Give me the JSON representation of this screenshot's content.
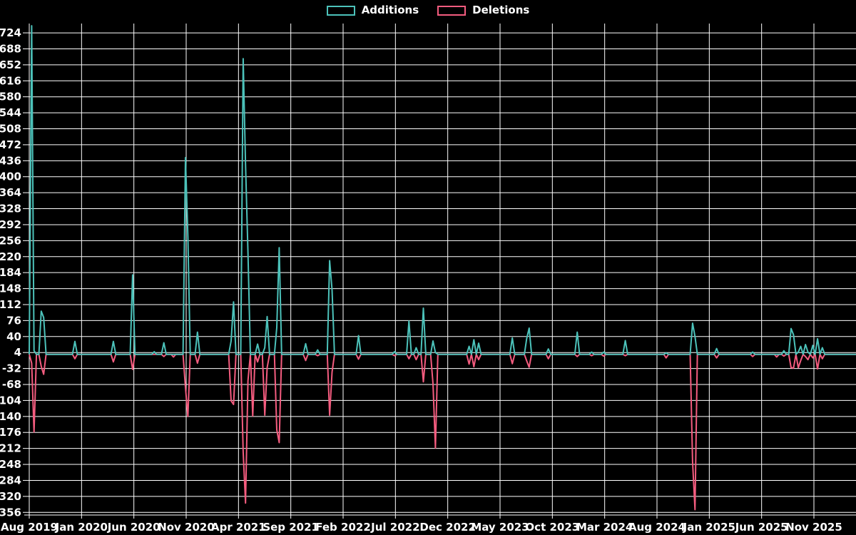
{
  "legend": {
    "items": [
      {
        "label": "Additions",
        "color": "#4cc2ba"
      },
      {
        "label": "Deletions",
        "color": "#f45c7f"
      }
    ]
  },
  "colors": {
    "background": "#000000",
    "grid": "#ffffff",
    "axis": "#ffffff",
    "text": "#ffffff",
    "additions": "#4cc2ba",
    "deletions": "#f45c7f"
  },
  "chart_data": {
    "type": "line",
    "title": "",
    "xlabel": "",
    "ylabel": "",
    "legend_position": "top-center",
    "grid": true,
    "x_tick_labels": [
      "Aug 2019",
      "Jan 2020",
      "Jun 2020",
      "Nov 2020",
      "Apr 2021",
      "Sep 2021",
      "Feb 2022",
      "Jul 2022",
      "Dec 2022",
      "May 2023",
      "Oct 2023",
      "Mar 2024",
      "Aug 2024",
      "Jan 2025",
      "Jun 2025",
      "Nov 2025"
    ],
    "y_tick_labels": [
      724,
      688,
      652,
      616,
      580,
      544,
      508,
      472,
      436,
      400,
      364,
      328,
      292,
      256,
      220,
      184,
      148,
      112,
      76,
      40,
      4,
      -32,
      -68,
      -104,
      -140,
      -176,
      -212,
      -248,
      -284,
      -320,
      -356
    ],
    "y_axis_range": [
      -362,
      745
    ],
    "total_weeks": 344,
    "baseline_value": 0,
    "series_names": [
      "Additions",
      "Deletions"
    ],
    "points_format": "[week_index, additions, deletions] — weeks not listed are 0 for both series",
    "points": [
      [
        1,
        740,
        -20
      ],
      [
        2,
        8,
        -175
      ],
      [
        5,
        97,
        -27
      ],
      [
        6,
        83,
        -45
      ],
      [
        19,
        29,
        -10
      ],
      [
        35,
        29,
        -17
      ],
      [
        43,
        179,
        -34
      ],
      [
        52,
        6,
        0
      ],
      [
        56,
        26,
        -5
      ],
      [
        60,
        0,
        -6
      ],
      [
        65,
        443,
        -75
      ],
      [
        66,
        265,
        -140
      ],
      [
        70,
        50,
        -20
      ],
      [
        84,
        30,
        -105
      ],
      [
        85,
        118,
        -113
      ],
      [
        89,
        666,
        -220
      ],
      [
        90,
        428,
        -335
      ],
      [
        91,
        230,
        -60
      ],
      [
        93,
        0,
        -139
      ],
      [
        95,
        23,
        -17
      ],
      [
        98,
        15,
        -137
      ],
      [
        99,
        85,
        -30
      ],
      [
        103,
        60,
        -170
      ],
      [
        104,
        240,
        -199
      ],
      [
        115,
        24,
        -14
      ],
      [
        120,
        10,
        -3
      ],
      [
        125,
        211,
        -137
      ],
      [
        126,
        145,
        -40
      ],
      [
        137,
        42,
        -11
      ],
      [
        152,
        6,
        -3
      ],
      [
        158,
        75,
        -10
      ],
      [
        161,
        15,
        -12
      ],
      [
        164,
        104,
        -62
      ],
      [
        168,
        30,
        -66
      ],
      [
        169,
        4,
        -211
      ],
      [
        183,
        18,
        -22
      ],
      [
        185,
        33,
        -28
      ],
      [
        187,
        25,
        -12
      ],
      [
        201,
        37,
        -21
      ],
      [
        207,
        36,
        -15
      ],
      [
        208,
        59,
        -29
      ],
      [
        216,
        12,
        -10
      ],
      [
        228,
        50,
        -5
      ],
      [
        234,
        5,
        -3
      ],
      [
        239,
        5,
        -4
      ],
      [
        248,
        31,
        -3
      ],
      [
        265,
        3,
        -8
      ],
      [
        276,
        70,
        -242
      ],
      [
        277,
        40,
        -350
      ],
      [
        286,
        13,
        -8
      ],
      [
        301,
        5,
        -5
      ],
      [
        311,
        0,
        -6
      ],
      [
        314,
        8,
        -4
      ],
      [
        317,
        58,
        -30
      ],
      [
        318,
        44,
        -31
      ],
      [
        320,
        5,
        -30
      ],
      [
        321,
        18,
        -14
      ],
      [
        323,
        22,
        -5
      ],
      [
        324,
        5,
        -12
      ],
      [
        326,
        20,
        -8
      ],
      [
        328,
        35,
        -33
      ],
      [
        330,
        15,
        -10
      ]
    ]
  }
}
